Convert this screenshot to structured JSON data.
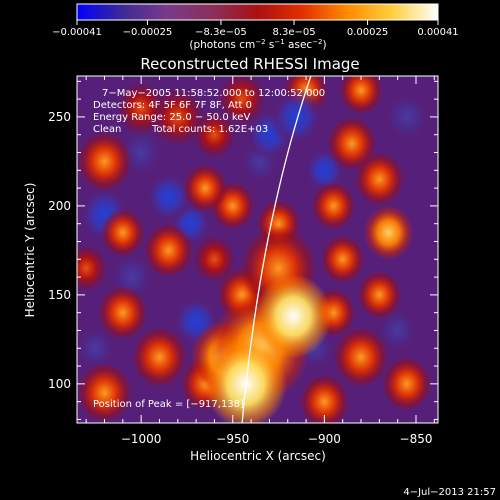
{
  "chart_data": {
    "type": "heatmap",
    "title": "Reconstructed RHESSI Image",
    "xlabel": "Heliocentric X (arcsec)",
    "ylabel": "Heliocentric Y (arcsec)",
    "xlim": [
      -1035,
      -838
    ],
    "ylim": [
      78,
      273
    ],
    "x_ticks": [
      -1000,
      -950,
      -900,
      -850
    ],
    "y_ticks": [
      100,
      150,
      200,
      250
    ],
    "x_tick_labels": [
      "−1000",
      "−950",
      "−900",
      "−850"
    ],
    "y_tick_labels": [
      "100",
      "150",
      "200",
      "250"
    ],
    "colorbar": {
      "range": [
        -0.00041,
        0.00041
      ],
      "tick_labels": [
        "−0.00041",
        "−0.00025",
        "−8.3e−05",
        "8.3e−05",
        "0.00025",
        "0.00041"
      ],
      "tick_values": [
        -0.00041,
        -0.00025,
        -8.3e-05,
        8.3e-05,
        0.00025,
        0.00041
      ],
      "unit_prefix": "(photons cm",
      "unit_exp1": "−2",
      "unit_mid": " s",
      "unit_exp2": "−1",
      "unit_mid2": " asec",
      "unit_exp3": "−2",
      "unit_suffix": ")",
      "colors": [
        "#0000ff",
        "#3c2a96",
        "#7a3a8a",
        "#8a2f5c",
        "#aa1010",
        "#e43000",
        "#ff8c00",
        "#ffd040",
        "#ffffff"
      ]
    },
    "annotations": {
      "time_range": "7−May−2005 11:58:52.000 to 12:00:52.000",
      "detectors": "Detectors: 4F 5F 6F 7F 8F, Att 0",
      "energy": "Energy Range: 25.0 − 50.0 keV",
      "method": "Clean",
      "total_counts": "Total counts: 1.62E+03",
      "peak": "Position of Peak = [−917,138]"
    },
    "peak_position": [
      -917,
      138
    ],
    "limb": "solar limb arc",
    "blobs": [
      {
        "x": -943,
        "y": 100,
        "r": 15,
        "v": 1.0
      },
      {
        "x": -917,
        "y": 138,
        "r": 14,
        "v": 0.98
      },
      {
        "x": -935,
        "y": 120,
        "r": 18,
        "v": 0.75
      },
      {
        "x": -955,
        "y": 115,
        "r": 12,
        "v": 0.65
      },
      {
        "x": -925,
        "y": 165,
        "r": 14,
        "v": 0.55
      },
      {
        "x": -945,
        "y": 150,
        "r": 9,
        "v": 0.5
      },
      {
        "x": -990,
        "y": 115,
        "r": 10,
        "v": 0.55
      },
      {
        "x": -1010,
        "y": 140,
        "r": 9,
        "v": 0.5
      },
      {
        "x": -1020,
        "y": 95,
        "r": 10,
        "v": 0.45
      },
      {
        "x": -965,
        "y": 100,
        "r": 9,
        "v": 0.5
      },
      {
        "x": -1020,
        "y": 225,
        "r": 10,
        "v": 0.55
      },
      {
        "x": -1010,
        "y": 185,
        "r": 8,
        "v": 0.4
      },
      {
        "x": -985,
        "y": 175,
        "r": 9,
        "v": 0.45
      },
      {
        "x": -965,
        "y": 210,
        "r": 8,
        "v": 0.5
      },
      {
        "x": -950,
        "y": 200,
        "r": 8,
        "v": 0.45
      },
      {
        "x": -980,
        "y": 250,
        "r": 10,
        "v": 0.3
      },
      {
        "x": -945,
        "y": 260,
        "r": 9,
        "v": 0.35
      },
      {
        "x": -910,
        "y": 265,
        "r": 8,
        "v": 0.45
      },
      {
        "x": -880,
        "y": 265,
        "r": 8,
        "v": 0.4
      },
      {
        "x": -885,
        "y": 235,
        "r": 9,
        "v": 0.5
      },
      {
        "x": -870,
        "y": 215,
        "r": 9,
        "v": 0.55
      },
      {
        "x": -895,
        "y": 200,
        "r": 8,
        "v": 0.45
      },
      {
        "x": -865,
        "y": 185,
        "r": 9,
        "v": 0.6
      },
      {
        "x": -890,
        "y": 170,
        "r": 8,
        "v": 0.5
      },
      {
        "x": -870,
        "y": 150,
        "r": 8,
        "v": 0.45
      },
      {
        "x": -895,
        "y": 140,
        "r": 8,
        "v": 0.4
      },
      {
        "x": -880,
        "y": 115,
        "r": 10,
        "v": 0.55
      },
      {
        "x": -855,
        "y": 100,
        "r": 9,
        "v": 0.4
      },
      {
        "x": -900,
        "y": 90,
        "r": 9,
        "v": 0.5
      },
      {
        "x": -925,
        "y": 190,
        "r": 8,
        "v": 0.4
      },
      {
        "x": -960,
        "y": 170,
        "r": 8,
        "v": 0.3
      },
      {
        "x": -1000,
        "y": 255,
        "r": 9,
        "v": 0.35
      },
      {
        "x": -960,
        "y": 240,
        "r": 8,
        "v": 0.3
      },
      {
        "x": -1030,
        "y": 165,
        "r": 8,
        "v": 0.35
      },
      {
        "x": -1020,
        "y": 195,
        "r": 10,
        "v": -0.35
      },
      {
        "x": -985,
        "y": 205,
        "r": 9,
        "v": -0.45
      },
      {
        "x": -973,
        "y": 190,
        "r": 8,
        "v": -0.35
      },
      {
        "x": -930,
        "y": 240,
        "r": 9,
        "v": -0.4
      },
      {
        "x": -915,
        "y": 250,
        "r": 10,
        "v": -0.5
      },
      {
        "x": -1000,
        "y": 230,
        "r": 9,
        "v": -0.3
      },
      {
        "x": -1005,
        "y": 160,
        "r": 9,
        "v": -0.3
      },
      {
        "x": -970,
        "y": 135,
        "r": 9,
        "v": -0.35
      },
      {
        "x": -935,
        "y": 225,
        "r": 8,
        "v": -0.3
      },
      {
        "x": -900,
        "y": 220,
        "r": 8,
        "v": -0.35
      },
      {
        "x": -905,
        "y": 120,
        "r": 8,
        "v": -0.3
      },
      {
        "x": -860,
        "y": 130,
        "r": 8,
        "v": -0.3
      },
      {
        "x": -855,
        "y": 250,
        "r": 9,
        "v": -0.3
      },
      {
        "x": -1025,
        "y": 120,
        "r": 8,
        "v": -0.25
      }
    ]
  },
  "footer": {
    "date": "4−Jul−2013 21:57"
  }
}
